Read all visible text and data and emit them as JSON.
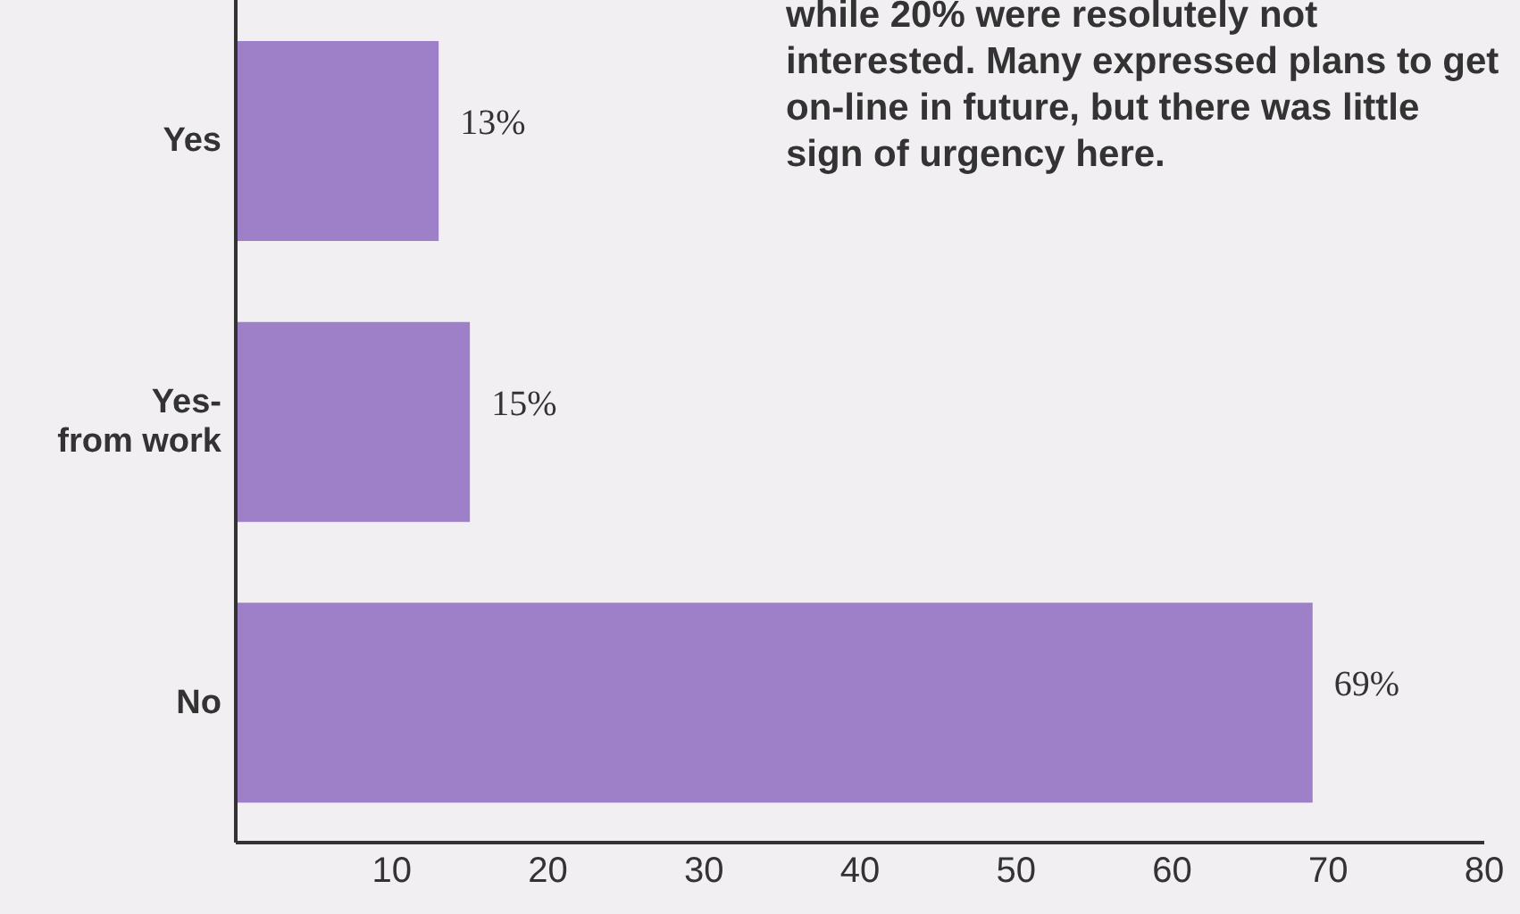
{
  "chart_data": {
    "type": "bar",
    "orientation": "horizontal",
    "categories": [
      "Yes",
      "Yes-\nfrom work",
      "No"
    ],
    "values": [
      13,
      15,
      69
    ],
    "color": "#9d80c8",
    "value_labels": [
      "13%",
      "15%",
      "69%"
    ],
    "xlim": [
      0,
      80
    ],
    "xticks": [
      10,
      20,
      30,
      40,
      50,
      60,
      70,
      80
    ],
    "grid": false,
    "legend": false,
    "annotations": [
      "while 20% were resolutely not interested. Many expressed plans to get on-line in future, but there was little sign of urgency here."
    ]
  }
}
